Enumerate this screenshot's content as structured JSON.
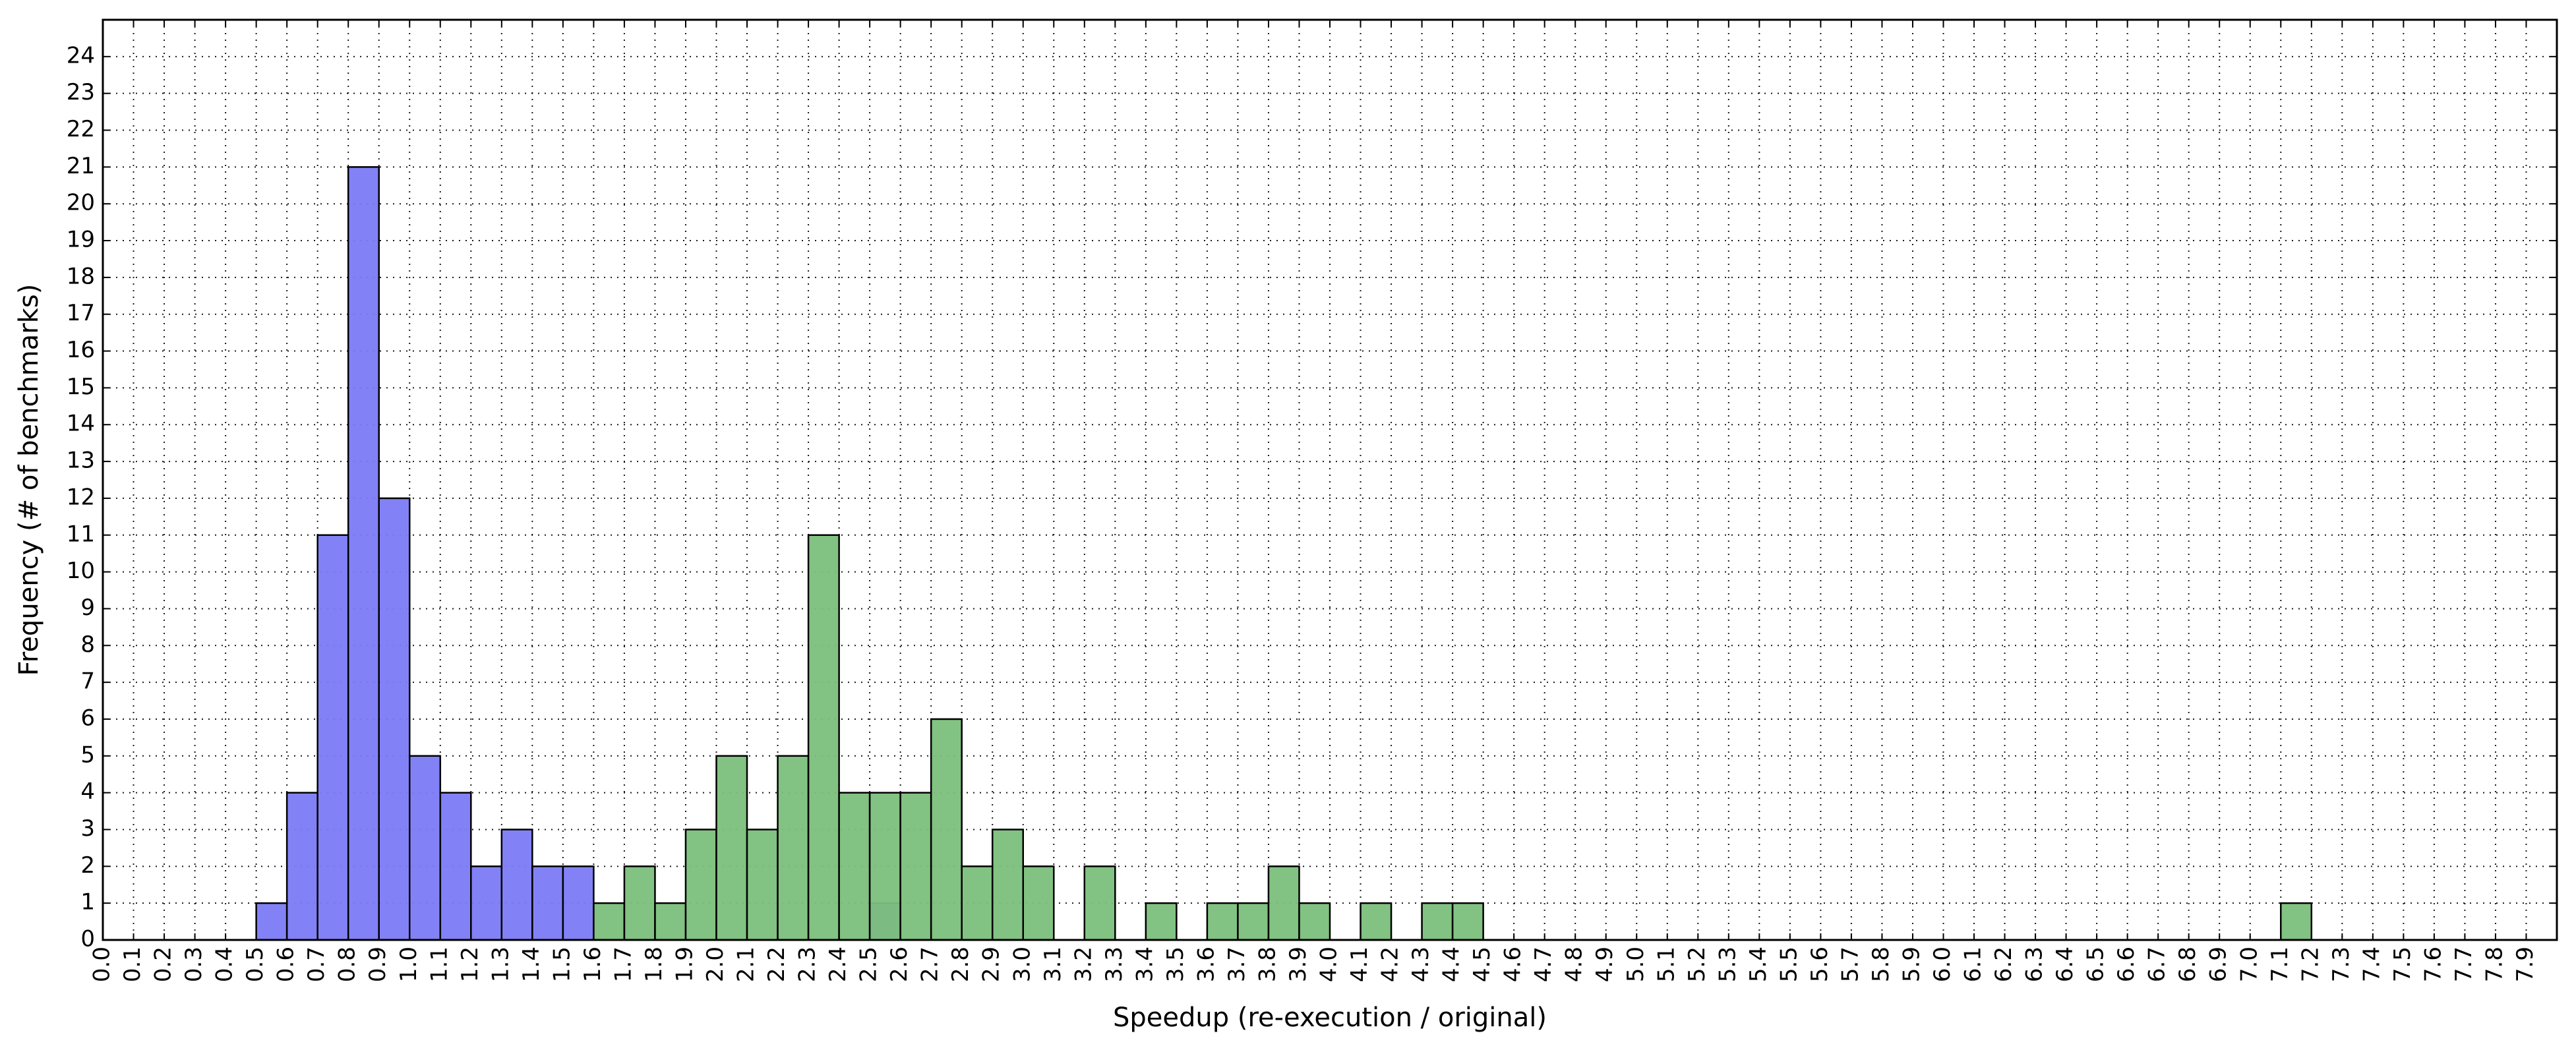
{
  "chart_data": {
    "type": "bar",
    "title": "",
    "xlabel": "Speedup (re-execution / original)",
    "ylabel": "Frequency (# of benchmarks)",
    "xlim": [
      0.0,
      8.0
    ],
    "ylim": [
      0,
      25
    ],
    "x_tick_step": 0.1,
    "y_tick_step": 1,
    "grid": true,
    "bin_width": 0.1,
    "series": [
      {
        "color": "#7b7bf5",
        "bins": [
          {
            "x": 0.5,
            "y": 1
          },
          {
            "x": 0.6,
            "y": 4
          },
          {
            "x": 0.7,
            "y": 11
          },
          {
            "x": 0.8,
            "y": 21
          },
          {
            "x": 0.9,
            "y": 12
          },
          {
            "x": 1.0,
            "y": 5
          },
          {
            "x": 1.1,
            "y": 4
          },
          {
            "x": 1.2,
            "y": 2
          },
          {
            "x": 1.3,
            "y": 3
          },
          {
            "x": 1.4,
            "y": 2
          },
          {
            "x": 1.5,
            "y": 2
          },
          {
            "x": 2.5,
            "y": 1
          }
        ]
      },
      {
        "color": "#7bbf7b",
        "bins": [
          {
            "x": 1.6,
            "y": 1
          },
          {
            "x": 1.7,
            "y": 2
          },
          {
            "x": 1.8,
            "y": 1
          },
          {
            "x": 1.9,
            "y": 3
          },
          {
            "x": 2.0,
            "y": 5
          },
          {
            "x": 2.1,
            "y": 3
          },
          {
            "x": 2.2,
            "y": 5
          },
          {
            "x": 2.3,
            "y": 11
          },
          {
            "x": 2.4,
            "y": 4
          },
          {
            "x": 2.5,
            "y": 4
          },
          {
            "x": 2.6,
            "y": 4
          },
          {
            "x": 2.7,
            "y": 6
          },
          {
            "x": 2.8,
            "y": 2
          },
          {
            "x": 2.9,
            "y": 3
          },
          {
            "x": 3.0,
            "y": 2
          },
          {
            "x": 3.2,
            "y": 2
          },
          {
            "x": 3.4,
            "y": 1
          },
          {
            "x": 3.6,
            "y": 1
          },
          {
            "x": 3.7,
            "y": 1
          },
          {
            "x": 3.8,
            "y": 2
          },
          {
            "x": 3.9,
            "y": 1
          },
          {
            "x": 4.1,
            "y": 1
          },
          {
            "x": 4.3,
            "y": 1
          },
          {
            "x": 4.4,
            "y": 1
          },
          {
            "x": 7.1,
            "y": 1
          }
        ]
      }
    ]
  }
}
